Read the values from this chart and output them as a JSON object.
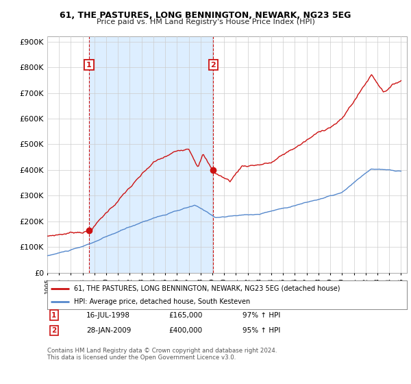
{
  "title1": "61, THE PASTURES, LONG BENNINGTON, NEWARK, NG23 5EG",
  "title2": "Price paid vs. HM Land Registry's House Price Index (HPI)",
  "ytick_values": [
    0,
    100000,
    200000,
    300000,
    400000,
    500000,
    600000,
    700000,
    800000,
    900000
  ],
  "hpi_color": "#5588cc",
  "price_color": "#cc1111",
  "shade_color": "#ddeeff",
  "background_color": "#ffffff",
  "grid_color": "#cccccc",
  "sale1": {
    "date_num": 1998.54,
    "price": 165000,
    "label": "1"
  },
  "sale2": {
    "date_num": 2009.07,
    "price": 400000,
    "label": "2"
  },
  "legend_label1": "61, THE PASTURES, LONG BENNINGTON, NEWARK, NG23 5EG (detached house)",
  "legend_label2": "HPI: Average price, detached house, South Kesteven",
  "footnote": "Contains HM Land Registry data © Crown copyright and database right 2024.\nThis data is licensed under the Open Government Licence v3.0.",
  "xmin": 1995.0,
  "xmax": 2025.5,
  "ymin": 0,
  "ymax": 920000
}
